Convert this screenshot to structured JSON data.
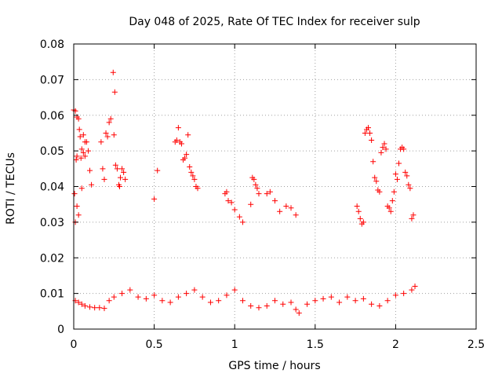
{
  "chart_data": {
    "type": "scatter",
    "title": "Day 048 of 2025, Rate Of TEC Index for receiver sulp",
    "xlabel": "GPS time / hours",
    "ylabel": "ROTI / TECUs",
    "xlim": [
      0,
      2.5
    ],
    "ylim": [
      0,
      0.08
    ],
    "grid": true,
    "marker": "+",
    "marker_color": "#ff0000",
    "x_ticks": [
      {
        "value": 0,
        "label": "0"
      },
      {
        "value": 0.5,
        "label": "0.5"
      },
      {
        "value": 1,
        "label": "1"
      },
      {
        "value": 1.5,
        "label": "1.5"
      },
      {
        "value": 2,
        "label": "2"
      },
      {
        "value": 2.5,
        "label": "2.5"
      }
    ],
    "y_ticks": [
      {
        "value": 0,
        "label": "0"
      },
      {
        "value": 0.01,
        "label": "0.01"
      },
      {
        "value": 0.02,
        "label": "0.02"
      },
      {
        "value": 0.03,
        "label": "0.03"
      },
      {
        "value": 0.04,
        "label": "0.04"
      },
      {
        "value": 0.05,
        "label": "0.05"
      },
      {
        "value": 0.06,
        "label": "0.06"
      },
      {
        "value": 0.07,
        "label": "0.07"
      },
      {
        "value": 0.08,
        "label": "0.08"
      }
    ],
    "series": [
      {
        "name": "ROTI",
        "points": [
          [
            0.0,
            0.0615
          ],
          [
            0.01,
            0.0612
          ],
          [
            0.02,
            0.0595
          ],
          [
            0.03,
            0.059
          ],
          [
            0.035,
            0.056
          ],
          [
            0.04,
            0.054
          ],
          [
            0.05,
            0.0505
          ],
          [
            0.06,
            0.0495
          ],
          [
            0.07,
            0.0485
          ],
          [
            0.02,
            0.0485
          ],
          [
            0.015,
            0.0475
          ],
          [
            0.045,
            0.048
          ],
          [
            0.06,
            0.0545
          ],
          [
            0.07,
            0.0525
          ],
          [
            0.08,
            0.0525
          ],
          [
            0.09,
            0.05
          ],
          [
            0.1,
            0.0445
          ],
          [
            0.11,
            0.0405
          ],
          [
            0.05,
            0.0395
          ],
          [
            0.005,
            0.038
          ],
          [
            0.02,
            0.0345
          ],
          [
            0.03,
            0.032
          ],
          [
            0.01,
            0.03
          ],
          [
            0.17,
            0.0525
          ],
          [
            0.18,
            0.045
          ],
          [
            0.19,
            0.042
          ],
          [
            0.2,
            0.055
          ],
          [
            0.21,
            0.054
          ],
          [
            0.22,
            0.058
          ],
          [
            0.23,
            0.059
          ],
          [
            0.25,
            0.0545
          ],
          [
            0.245,
            0.072
          ],
          [
            0.255,
            0.0665
          ],
          [
            0.26,
            0.046
          ],
          [
            0.27,
            0.045
          ],
          [
            0.28,
            0.0405
          ],
          [
            0.285,
            0.04
          ],
          [
            0.29,
            0.0425
          ],
          [
            0.3,
            0.045
          ],
          [
            0.31,
            0.044
          ],
          [
            0.32,
            0.042
          ],
          [
            0.5,
            0.0365
          ],
          [
            0.52,
            0.0445
          ],
          [
            0.63,
            0.0525
          ],
          [
            0.64,
            0.053
          ],
          [
            0.65,
            0.0565
          ],
          [
            0.66,
            0.0525
          ],
          [
            0.67,
            0.052
          ],
          [
            0.68,
            0.0475
          ],
          [
            0.69,
            0.048
          ],
          [
            0.7,
            0.049
          ],
          [
            0.71,
            0.0545
          ],
          [
            0.72,
            0.0455
          ],
          [
            0.73,
            0.044
          ],
          [
            0.74,
            0.043
          ],
          [
            0.75,
            0.042
          ],
          [
            0.76,
            0.04
          ],
          [
            0.77,
            0.0395
          ],
          [
            0.94,
            0.038
          ],
          [
            0.95,
            0.0385
          ],
          [
            0.96,
            0.036
          ],
          [
            0.98,
            0.0355
          ],
          [
            1.0,
            0.0335
          ],
          [
            1.03,
            0.0315
          ],
          [
            1.05,
            0.03
          ],
          [
            1.1,
            0.035
          ],
          [
            1.11,
            0.0425
          ],
          [
            1.12,
            0.042
          ],
          [
            1.13,
            0.0405
          ],
          [
            1.14,
            0.0395
          ],
          [
            1.15,
            0.038
          ],
          [
            1.2,
            0.038
          ],
          [
            1.22,
            0.0385
          ],
          [
            1.25,
            0.036
          ],
          [
            1.28,
            0.033
          ],
          [
            1.32,
            0.0345
          ],
          [
            1.35,
            0.034
          ],
          [
            1.38,
            0.032
          ],
          [
            1.76,
            0.0345
          ],
          [
            1.77,
            0.033
          ],
          [
            1.78,
            0.031
          ],
          [
            1.79,
            0.0295
          ],
          [
            1.8,
            0.03
          ],
          [
            1.81,
            0.055
          ],
          [
            1.82,
            0.056
          ],
          [
            1.83,
            0.0565
          ],
          [
            1.84,
            0.055
          ],
          [
            1.85,
            0.053
          ],
          [
            1.86,
            0.047
          ],
          [
            1.87,
            0.0425
          ],
          [
            1.88,
            0.0415
          ],
          [
            1.89,
            0.039
          ],
          [
            1.9,
            0.0385
          ],
          [
            1.91,
            0.0495
          ],
          [
            1.92,
            0.051
          ],
          [
            1.93,
            0.052
          ],
          [
            1.94,
            0.0505
          ],
          [
            1.95,
            0.0345
          ],
          [
            1.96,
            0.034
          ],
          [
            1.97,
            0.033
          ],
          [
            1.98,
            0.036
          ],
          [
            1.99,
            0.0385
          ],
          [
            2.0,
            0.0435
          ],
          [
            2.01,
            0.042
          ],
          [
            2.02,
            0.0465
          ],
          [
            2.03,
            0.0505
          ],
          [
            2.04,
            0.051
          ],
          [
            2.05,
            0.0505
          ],
          [
            2.06,
            0.044
          ],
          [
            2.07,
            0.043
          ],
          [
            2.08,
            0.0405
          ],
          [
            2.09,
            0.0395
          ],
          [
            2.1,
            0.031
          ],
          [
            2.11,
            0.032
          ],
          [
            0.01,
            0.008
          ],
          [
            0.03,
            0.0075
          ],
          [
            0.05,
            0.007
          ],
          [
            0.07,
            0.0065
          ],
          [
            0.1,
            0.0062
          ],
          [
            0.13,
            0.006
          ],
          [
            0.16,
            0.006
          ],
          [
            0.19,
            0.0058
          ],
          [
            0.22,
            0.008
          ],
          [
            0.25,
            0.009
          ],
          [
            0.3,
            0.01
          ],
          [
            0.35,
            0.011
          ],
          [
            0.4,
            0.009
          ],
          [
            0.45,
            0.0085
          ],
          [
            0.5,
            0.0095
          ],
          [
            0.55,
            0.008
          ],
          [
            0.6,
            0.0075
          ],
          [
            0.65,
            0.009
          ],
          [
            0.7,
            0.01
          ],
          [
            0.75,
            0.011
          ],
          [
            0.8,
            0.009
          ],
          [
            0.85,
            0.0075
          ],
          [
            0.9,
            0.008
          ],
          [
            0.95,
            0.0095
          ],
          [
            1.0,
            0.011
          ],
          [
            1.05,
            0.008
          ],
          [
            1.1,
            0.0065
          ],
          [
            1.15,
            0.006
          ],
          [
            1.2,
            0.0065
          ],
          [
            1.25,
            0.008
          ],
          [
            1.3,
            0.007
          ],
          [
            1.35,
            0.0075
          ],
          [
            1.38,
            0.0055
          ],
          [
            1.4,
            0.0045
          ],
          [
            1.45,
            0.007
          ],
          [
            1.5,
            0.008
          ],
          [
            1.55,
            0.0085
          ],
          [
            1.6,
            0.009
          ],
          [
            1.65,
            0.0075
          ],
          [
            1.7,
            0.009
          ],
          [
            1.75,
            0.008
          ],
          [
            1.8,
            0.0085
          ],
          [
            1.85,
            0.007
          ],
          [
            1.9,
            0.0065
          ],
          [
            1.95,
            0.008
          ],
          [
            2.0,
            0.0095
          ],
          [
            2.05,
            0.01
          ],
          [
            2.1,
            0.011
          ],
          [
            2.12,
            0.012
          ]
        ]
      }
    ]
  }
}
